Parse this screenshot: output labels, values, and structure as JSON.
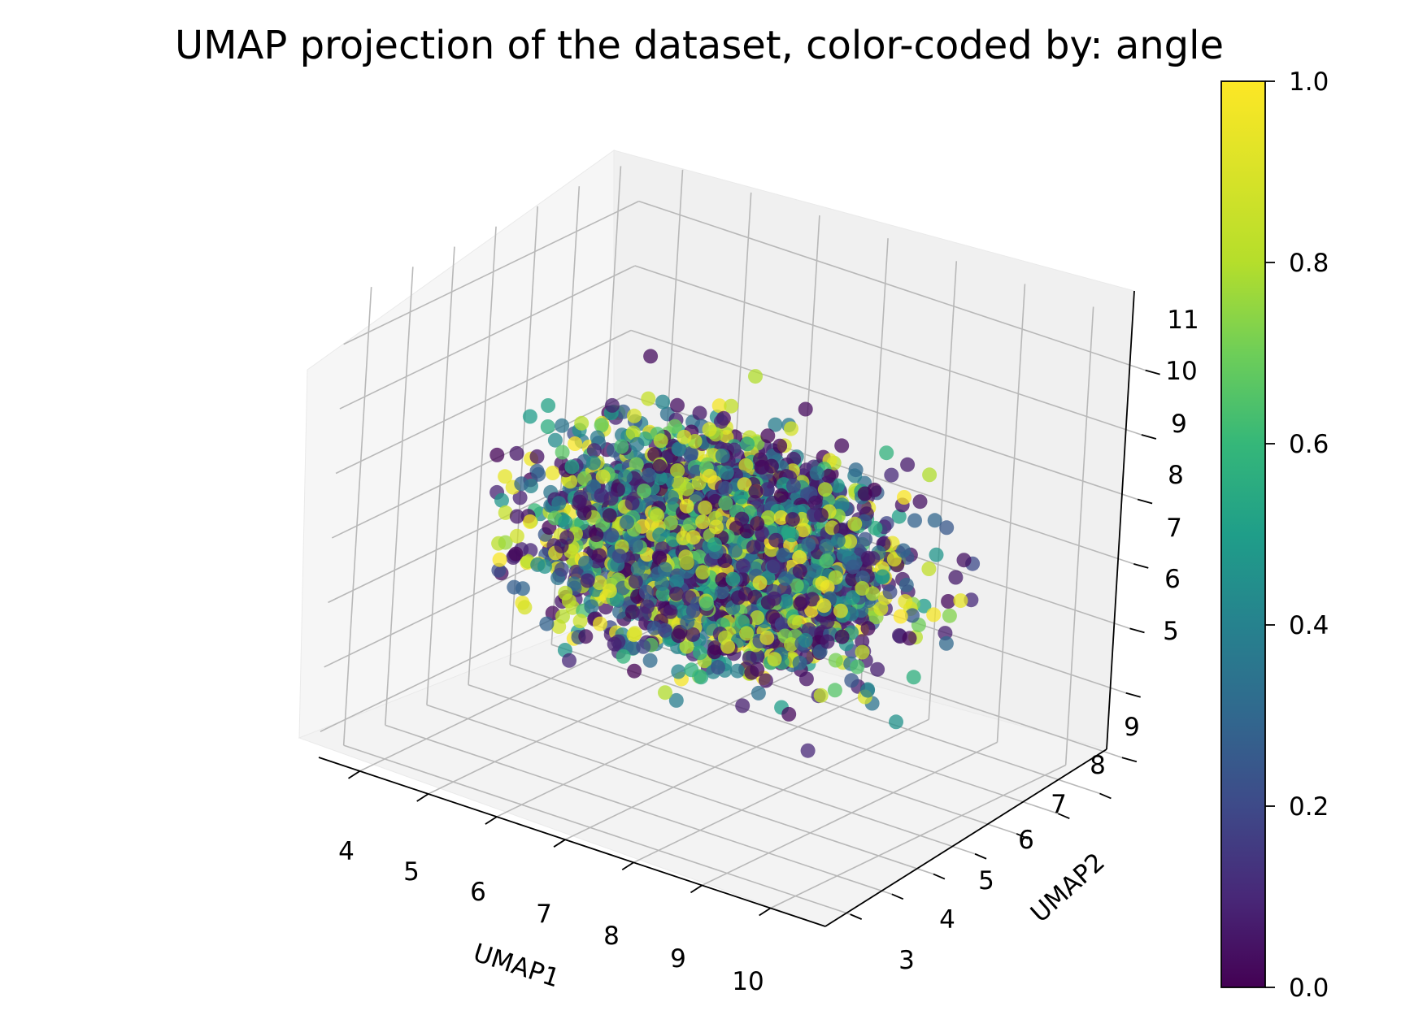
{
  "chart_data": {
    "type": "scatter",
    "projection": "3d",
    "title": "UMAP projection of the dataset, color-coded by: angle",
    "xlabel": "UMAP1",
    "ylabel": "UMAP2",
    "zlabel": "",
    "x_ticks": [
      "4",
      "5",
      "6",
      "7",
      "8",
      "9",
      "10"
    ],
    "y_ticks": [
      "3",
      "4",
      "5",
      "6",
      "7",
      "8",
      "9"
    ],
    "z_ticks": [
      "5",
      "6",
      "7",
      "8",
      "9",
      "10",
      "11"
    ],
    "xlim": [
      3.4,
      10.8
    ],
    "ylim": [
      2.4,
      9.5
    ],
    "zlim": [
      4.6,
      11.7
    ],
    "colorbar": {
      "label": "",
      "colormap": "viridis",
      "range": [
        0.0,
        1.0
      ],
      "ticks": [
        "0.0",
        "0.2",
        "0.4",
        "0.6",
        "0.8",
        "1.0"
      ]
    },
    "point_cloud": {
      "x_range": [
        3.6,
        10.4
      ],
      "y_range": [
        2.8,
        9.0
      ],
      "z_range": [
        4.8,
        11.2
      ],
      "color_value_range": [
        0.0,
        1.0
      ],
      "marker_alpha": 0.75
    },
    "grid": true,
    "legend": "none"
  }
}
